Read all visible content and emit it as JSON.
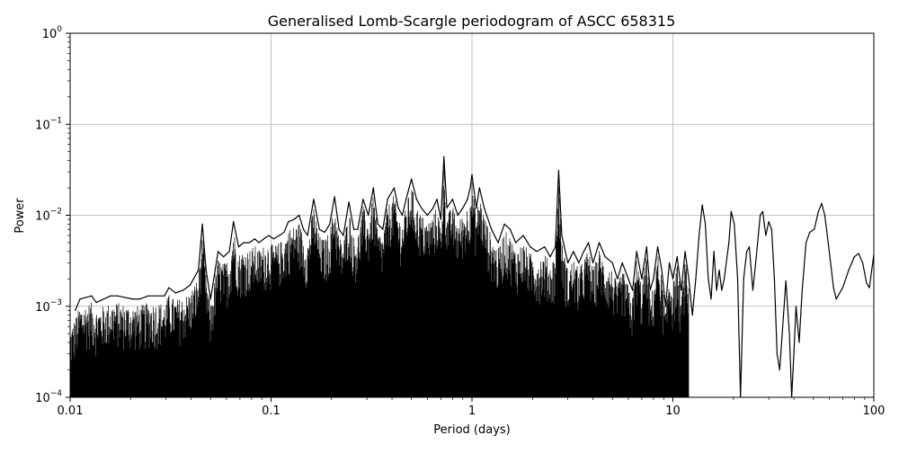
{
  "chart_data": {
    "type": "line",
    "title": "Generalised Lomb-Scargle periodogram of ASCC 658315",
    "xlabel": "Period (days)",
    "ylabel": "Power",
    "x_scale": "log",
    "y_scale": "log",
    "xlim": [
      0.01,
      100
    ],
    "ylim": [
      0.0001,
      1
    ],
    "x_ticks": [
      {
        "value": 0.01,
        "label": "0.01"
      },
      {
        "value": 0.1,
        "label": "0.1"
      },
      {
        "value": 1,
        "label": "1"
      },
      {
        "value": 10,
        "label": "10"
      },
      {
        "value": 100,
        "label": "100"
      }
    ],
    "y_ticks": [
      {
        "value": 0.0001,
        "base": "10",
        "exp": "−4"
      },
      {
        "value": 0.001,
        "base": "10",
        "exp": "−3"
      },
      {
        "value": 0.01,
        "base": "10",
        "exp": "−2"
      },
      {
        "value": 0.1,
        "base": "10",
        "exp": "−1"
      },
      {
        "value": 1,
        "base": "10",
        "exp": "0"
      }
    ],
    "grid": true,
    "line_color": "#000000",
    "series": [
      {
        "values": [
          [
            0.0106,
            0.0009
          ],
          [
            0.0112,
            0.0012
          ],
          [
            0.0128,
            0.0013
          ],
          [
            0.0135,
            0.0011
          ],
          [
            0.0159,
            0.0013
          ],
          [
            0.0172,
            0.0013
          ],
          [
            0.0205,
            0.0012
          ],
          [
            0.0222,
            0.0012
          ],
          [
            0.0245,
            0.0013
          ],
          [
            0.0276,
            0.0013
          ],
          [
            0.0295,
            0.0013
          ],
          [
            0.031,
            0.0016
          ],
          [
            0.0335,
            0.0014
          ],
          [
            0.0365,
            0.0015
          ],
          [
            0.0395,
            0.0017
          ],
          [
            0.0435,
            0.0025
          ],
          [
            0.0455,
            0.008
          ],
          [
            0.0475,
            0.0025
          ],
          [
            0.05,
            0.0012
          ],
          [
            0.0545,
            0.004
          ],
          [
            0.058,
            0.0035
          ],
          [
            0.062,
            0.004
          ],
          [
            0.065,
            0.0085
          ],
          [
            0.069,
            0.0045
          ],
          [
            0.073,
            0.005
          ],
          [
            0.078,
            0.005
          ],
          [
            0.083,
            0.0055
          ],
          [
            0.087,
            0.005
          ],
          [
            0.092,
            0.0055
          ],
          [
            0.0975,
            0.006
          ],
          [
            0.103,
            0.0055
          ],
          [
            0.11,
            0.006
          ],
          [
            0.116,
            0.0065
          ],
          [
            0.122,
            0.0085
          ],
          [
            0.13,
            0.009
          ],
          [
            0.138,
            0.01
          ],
          [
            0.145,
            0.007
          ],
          [
            0.152,
            0.006
          ],
          [
            0.163,
            0.015
          ],
          [
            0.174,
            0.007
          ],
          [
            0.185,
            0.0065
          ],
          [
            0.196,
            0.008
          ],
          [
            0.207,
            0.016
          ],
          [
            0.218,
            0.007
          ],
          [
            0.229,
            0.006
          ],
          [
            0.244,
            0.014
          ],
          [
            0.258,
            0.007
          ],
          [
            0.27,
            0.007
          ],
          [
            0.287,
            0.015
          ],
          [
            0.305,
            0.01
          ],
          [
            0.323,
            0.02
          ],
          [
            0.34,
            0.008
          ],
          [
            0.36,
            0.007
          ],
          [
            0.38,
            0.015
          ],
          [
            0.41,
            0.02
          ],
          [
            0.43,
            0.012
          ],
          [
            0.45,
            0.01
          ],
          [
            0.47,
            0.015
          ],
          [
            0.5,
            0.025
          ],
          [
            0.53,
            0.015
          ],
          [
            0.56,
            0.012
          ],
          [
            0.6,
            0.01
          ],
          [
            0.64,
            0.012
          ],
          [
            0.67,
            0.015
          ],
          [
            0.7,
            0.009
          ],
          [
            0.725,
            0.044
          ],
          [
            0.75,
            0.012
          ],
          [
            0.8,
            0.015
          ],
          [
            0.85,
            0.01
          ],
          [
            0.9,
            0.012
          ],
          [
            0.95,
            0.015
          ],
          [
            0.98,
            0.02
          ],
          [
            1.0,
            0.028
          ],
          [
            1.02,
            0.02
          ],
          [
            1.05,
            0.012
          ],
          [
            1.09,
            0.02
          ],
          [
            1.15,
            0.012
          ],
          [
            1.25,
            0.007
          ],
          [
            1.35,
            0.005
          ],
          [
            1.45,
            0.008
          ],
          [
            1.55,
            0.007
          ],
          [
            1.65,
            0.005
          ],
          [
            1.8,
            0.006
          ],
          [
            1.95,
            0.0045
          ],
          [
            2.1,
            0.004
          ],
          [
            2.3,
            0.0045
          ],
          [
            2.45,
            0.0035
          ],
          [
            2.6,
            0.0045
          ],
          [
            2.7,
            0.031
          ],
          [
            2.8,
            0.006
          ],
          [
            3.0,
            0.003
          ],
          [
            3.2,
            0.004
          ],
          [
            3.4,
            0.003
          ],
          [
            3.6,
            0.004
          ],
          [
            3.8,
            0.005
          ],
          [
            4.0,
            0.003
          ],
          [
            4.3,
            0.005
          ],
          [
            4.6,
            0.0035
          ],
          [
            5.0,
            0.003
          ],
          [
            5.3,
            0.002
          ],
          [
            5.6,
            0.003
          ],
          [
            6.0,
            0.002
          ],
          [
            6.3,
            0.0015
          ],
          [
            6.6,
            0.004
          ],
          [
            7.0,
            0.002
          ],
          [
            7.4,
            0.0045
          ],
          [
            7.7,
            0.0015
          ],
          [
            8.0,
            0.002
          ],
          [
            8.4,
            0.0045
          ],
          [
            8.8,
            0.0025
          ],
          [
            9.2,
            0.001
          ],
          [
            9.6,
            0.003
          ],
          [
            10.0,
            0.002
          ],
          [
            10.5,
            0.0035
          ],
          [
            11.0,
            0.0015
          ],
          [
            11.5,
            0.004
          ],
          [
            12.0,
            0.002
          ],
          [
            12.5,
            0.0008
          ],
          [
            13.0,
            0.002
          ],
          [
            13.5,
            0.006
          ],
          [
            14.0,
            0.013
          ],
          [
            14.5,
            0.008
          ],
          [
            15.0,
            0.002
          ],
          [
            15.5,
            0.0012
          ],
          [
            16.0,
            0.004
          ],
          [
            16.5,
            0.0015
          ],
          [
            17.0,
            0.0025
          ],
          [
            17.5,
            0.0015
          ],
          [
            18.0,
            0.002
          ],
          [
            19.0,
            0.005
          ],
          [
            19.5,
            0.011
          ],
          [
            20.2,
            0.008
          ],
          [
            21.0,
            0.002
          ],
          [
            21.7,
            0.0001
          ],
          [
            22.5,
            0.002
          ],
          [
            23.3,
            0.004
          ],
          [
            24.0,
            0.0045
          ],
          [
            25.0,
            0.0015
          ],
          [
            26.0,
            0.0035
          ],
          [
            27.2,
            0.01
          ],
          [
            28.0,
            0.011
          ],
          [
            29.0,
            0.006
          ],
          [
            30.0,
            0.0085
          ],
          [
            31.0,
            0.007
          ],
          [
            32.0,
            0.002
          ],
          [
            33.0,
            0.0003
          ],
          [
            34.0,
            0.0002
          ],
          [
            35.0,
            0.0005
          ],
          [
            36.5,
            0.0019
          ],
          [
            38.0,
            0.0005
          ],
          [
            39.0,
            0.0001
          ],
          [
            40.0,
            0.0003
          ],
          [
            41.0,
            0.001
          ],
          [
            42.5,
            0.0004
          ],
          [
            44.0,
            0.0015
          ],
          [
            46.0,
            0.005
          ],
          [
            48.0,
            0.0065
          ],
          [
            50.5,
            0.007
          ],
          [
            53.0,
            0.011
          ],
          [
            55.0,
            0.0135
          ],
          [
            57.0,
            0.01
          ],
          [
            60.0,
            0.004
          ],
          [
            63.0,
            0.0016
          ],
          [
            65.0,
            0.0012
          ],
          [
            70.0,
            0.0016
          ],
          [
            75.0,
            0.0025
          ],
          [
            80.0,
            0.0035
          ],
          [
            84.0,
            0.0038
          ],
          [
            88.0,
            0.003
          ],
          [
            92.0,
            0.0018
          ],
          [
            95.0,
            0.0016
          ],
          [
            100.0,
            0.0037
          ]
        ]
      }
    ]
  }
}
